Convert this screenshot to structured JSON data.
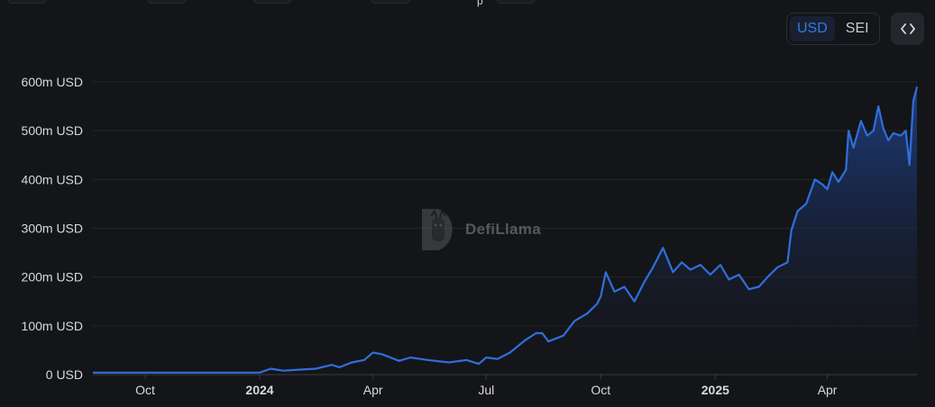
{
  "top_stubs": [
    "",
    "",
    "",
    "",
    ""
  ],
  "top_char": "p",
  "currency_toggle": {
    "options": [
      "USD",
      "SEI"
    ],
    "selected": "USD"
  },
  "embed_button": {
    "icon": "code-brackets-icon",
    "label": "<>"
  },
  "watermark": {
    "logo": "defillama-logo-icon",
    "text": "DefiLlama"
  },
  "colors": {
    "background": "#141518",
    "line": "#2f6fd9",
    "area_top": "#1f3f86",
    "grid": "#23252b",
    "accent": "#2f7ae8"
  },
  "chart_data": {
    "type": "area",
    "title": "",
    "xlabel": "",
    "ylabel": "",
    "ylim": [
      0,
      600
    ],
    "y_unit": "m USD",
    "y_ticks": [
      "0 USD",
      "100m USD",
      "200m USD",
      "300m USD",
      "400m USD",
      "500m USD",
      "600m USD"
    ],
    "y_tick_values": [
      0,
      100,
      200,
      300,
      400,
      500,
      600
    ],
    "x_ticks": [
      {
        "label": "Oct",
        "date": "2023-10-01",
        "bold": false
      },
      {
        "label": "2024",
        "date": "2024-01-01",
        "bold": true
      },
      {
        "label": "Apr",
        "date": "2024-04-01",
        "bold": false
      },
      {
        "label": "Jul",
        "date": "2024-07-01",
        "bold": false
      },
      {
        "label": "Oct",
        "date": "2024-10-01",
        "bold": false
      },
      {
        "label": "2025",
        "date": "2025-01-01",
        "bold": true
      },
      {
        "label": "Apr",
        "date": "2025-04-01",
        "bold": false
      }
    ],
    "xlim": [
      "2023-08-20",
      "2025-06-12"
    ],
    "grid": true,
    "legend": "none",
    "series": [
      {
        "name": "",
        "x": [
          "2023-08-20",
          "2023-10-01",
          "2023-12-01",
          "2024-01-01",
          "2024-01-10",
          "2024-01-20",
          "2024-02-01",
          "2024-02-15",
          "2024-02-28",
          "2024-03-05",
          "2024-03-15",
          "2024-03-25",
          "2024-04-01",
          "2024-04-08",
          "2024-04-15",
          "2024-04-22",
          "2024-05-01",
          "2024-05-15",
          "2024-06-01",
          "2024-06-15",
          "2024-06-25",
          "2024-07-01",
          "2024-07-10",
          "2024-07-20",
          "2024-08-01",
          "2024-08-10",
          "2024-08-15",
          "2024-08-20",
          "2024-09-01",
          "2024-09-10",
          "2024-09-20",
          "2024-09-28",
          "2024-10-01",
          "2024-10-05",
          "2024-10-12",
          "2024-10-20",
          "2024-10-28",
          "2024-11-05",
          "2024-11-12",
          "2024-11-20",
          "2024-11-28",
          "2024-12-05",
          "2024-12-12",
          "2024-12-20",
          "2024-12-28",
          "2025-01-05",
          "2025-01-12",
          "2025-01-20",
          "2025-01-28",
          "2025-02-05",
          "2025-02-12",
          "2025-02-20",
          "2025-02-28",
          "2025-03-03",
          "2025-03-08",
          "2025-03-15",
          "2025-03-22",
          "2025-03-28",
          "2025-04-01",
          "2025-04-05",
          "2025-04-10",
          "2025-04-16",
          "2025-04-18",
          "2025-04-22",
          "2025-04-28",
          "2025-05-03",
          "2025-05-08",
          "2025-05-12",
          "2025-05-16",
          "2025-05-20",
          "2025-05-24",
          "2025-05-30",
          "2025-06-03",
          "2025-06-06",
          "2025-06-09",
          "2025-06-12"
        ],
        "values": [
          4,
          4,
          4,
          4,
          12,
          8,
          10,
          12,
          20,
          15,
          25,
          30,
          45,
          42,
          35,
          28,
          35,
          30,
          25,
          30,
          22,
          35,
          32,
          45,
          70,
          85,
          85,
          68,
          80,
          110,
          125,
          145,
          160,
          210,
          170,
          180,
          150,
          190,
          220,
          260,
          210,
          230,
          215,
          225,
          205,
          225,
          195,
          205,
          175,
          180,
          200,
          220,
          230,
          295,
          335,
          350,
          400,
          390,
          380,
          415,
          395,
          420,
          500,
          465,
          520,
          490,
          500,
          550,
          505,
          480,
          495,
          490,
          500,
          430,
          560,
          590
        ]
      }
    ]
  }
}
